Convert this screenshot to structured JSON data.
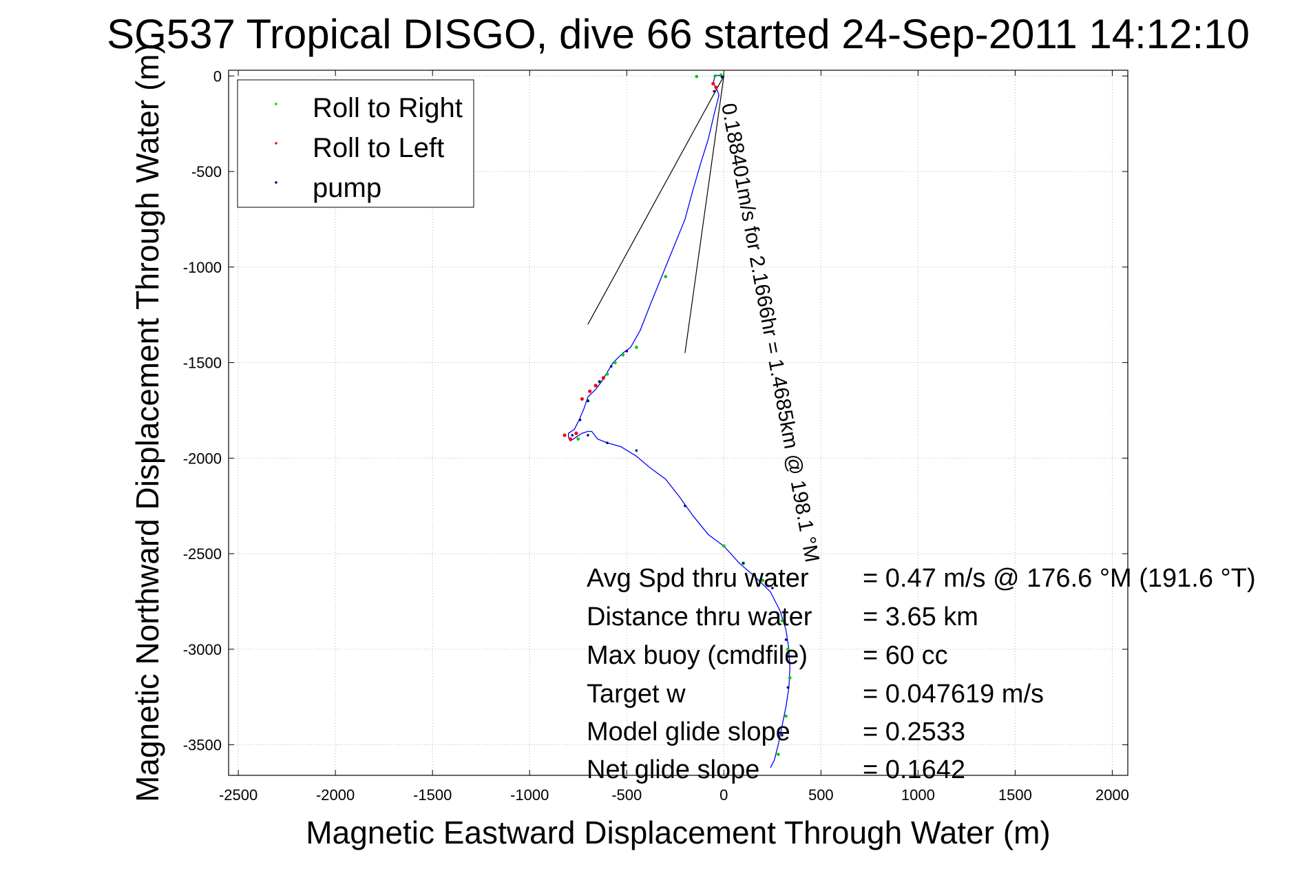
{
  "chart_data": {
    "type": "line",
    "title": "SG537 Tropical DISGO, dive 66 started 24-Sep-2011 14:12:10",
    "xlabel": "Magnetic Eastward Displacement Through Water (m)",
    "ylabel": "Magnetic Northward Displacement Through Water (m)",
    "xlim": [
      -2550,
      2080
    ],
    "ylim": [
      -3660,
      30
    ],
    "xticks": [
      -2500,
      -2000,
      -1500,
      -1000,
      -500,
      0,
      500,
      1000,
      1500,
      2000
    ],
    "yticks": [
      0,
      -500,
      -1000,
      -1500,
      -2000,
      -2500,
      -3000,
      -3500
    ],
    "grid": true,
    "legend_position": "top-left",
    "legend": [
      {
        "label": "Roll to Right",
        "color": "#00d000"
      },
      {
        "label": "Roll to Left",
        "color": "#ff0000"
      },
      {
        "label": "pump",
        "color": "#000080"
      }
    ],
    "series": [
      {
        "color": "#0000ff",
        "x": [
          0,
          -15,
          -45,
          -55,
          -40,
          -25,
          -50,
          -80,
          -120,
          -160,
          -200,
          -260,
          -320,
          -380,
          -430,
          -480,
          -520,
          -570,
          -600,
          -630,
          -660,
          -700,
          -720,
          -745,
          -770,
          -800,
          -800,
          -790,
          -760,
          -730,
          -700,
          -680,
          -650,
          -600,
          -530,
          -450,
          -380,
          -300,
          -230,
          -160,
          -80,
          0,
          80,
          160,
          240,
          290,
          320,
          335,
          340,
          335,
          320,
          300,
          280,
          260,
          240
        ],
        "y": [
          0,
          0,
          5,
          -40,
          -60,
          -100,
          -200,
          -330,
          -460,
          -600,
          -750,
          -900,
          -1050,
          -1200,
          -1330,
          -1420,
          -1450,
          -1500,
          -1550,
          -1600,
          -1640,
          -1680,
          -1740,
          -1800,
          -1850,
          -1870,
          -1890,
          -1910,
          -1890,
          -1870,
          -1860,
          -1860,
          -1900,
          -1920,
          -1940,
          -1990,
          -2050,
          -2110,
          -2200,
          -2300,
          -2400,
          -2460,
          -2550,
          -2620,
          -2700,
          -2800,
          -2900,
          -3000,
          -3100,
          -3200,
          -3300,
          -3400,
          -3500,
          -3580,
          -3620
        ]
      }
    ],
    "roll_right": {
      "x": [
        -15,
        -45,
        -140,
        -300,
        -450,
        -520,
        -560,
        -600,
        -640,
        -700,
        -750,
        0,
        100,
        200,
        300,
        330,
        340,
        320,
        280
      ],
      "y": [
        5,
        0,
        -3,
        -1050,
        -1420,
        -1460,
        -1500,
        -1560,
        -1600,
        -1700,
        -1900,
        -2460,
        -2550,
        -2640,
        -2850,
        -3000,
        -3150,
        -3350,
        -3550
      ]
    },
    "roll_left": {
      "x": [
        -55,
        -40,
        -620,
        -660,
        -690,
        -730,
        -760,
        -790,
        -820
      ],
      "y": [
        -40,
        -60,
        -1580,
        -1620,
        -1650,
        -1690,
        -1870,
        -1900,
        -1880
      ]
    },
    "pump": {
      "x": [
        -10,
        -50,
        -500,
        -580,
        -640,
        -700,
        -740,
        -780,
        -700,
        -600,
        -450,
        -200,
        100,
        250,
        320,
        330,
        300
      ],
      "y": [
        -5,
        -80,
        -1440,
        -1520,
        -1600,
        -1700,
        -1800,
        -1880,
        -1880,
        -1920,
        -1960,
        -2250,
        -2550,
        -2680,
        -2950,
        -3200,
        -3450
      ]
    },
    "wedge_lines": [
      {
        "x": [
          0,
          -700
        ],
        "y": [
          0,
          -1300
        ]
      },
      {
        "x": [
          0,
          -200
        ],
        "y": [
          0,
          -1450
        ]
      }
    ],
    "annotation": "0.188401m/s for 2.1666hr = 1.4685km @ 198.1 °M",
    "stats": [
      {
        "label": "Avg Spd thru water",
        "value": "=  0.47 m/s @ 176.6 °M (191.6 °T)"
      },
      {
        "label": "Distance thru water",
        "value": "=  3.65 km"
      },
      {
        "label": "Max buoy (cmdfile)",
        "value": "= 60 cc"
      },
      {
        "label": "Target w",
        "value": "= 0.047619 m/s"
      },
      {
        "label": "Model glide slope",
        "value": "= 0.2533"
      },
      {
        "label": "Net glide slope",
        "value": "= 0.1642"
      }
    ]
  }
}
